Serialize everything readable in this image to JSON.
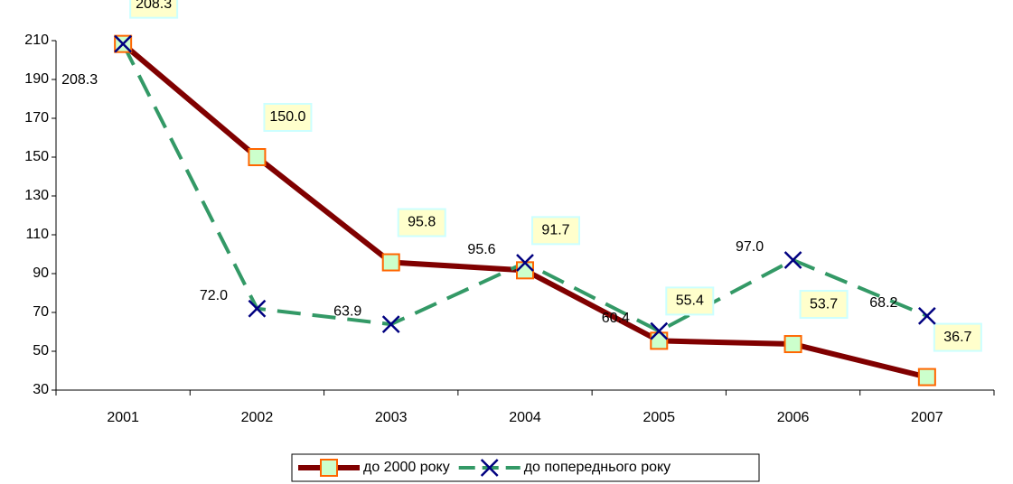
{
  "chart_data": {
    "type": "line",
    "categories": [
      "2001",
      "2002",
      "2003",
      "2004",
      "2005",
      "2006",
      "2007"
    ],
    "series": [
      {
        "name": "до 2000 року",
        "color": "#800000",
        "marker": "square",
        "marker_fill": "#ccffcc",
        "marker_edge": "#ff6600",
        "values": [
          208.3,
          150.0,
          95.8,
          91.7,
          55.4,
          53.7,
          36.7
        ],
        "value_labels": [
          "208.3",
          "150.0",
          "95.8",
          "91.7",
          "55.4",
          "53.7",
          "36.7"
        ]
      },
      {
        "name": "до попереднього року",
        "color": "#339966",
        "marker": "x",
        "marker_edge": "#000080",
        "dashed": true,
        "values": [
          208.3,
          72.0,
          63.9,
          95.6,
          60.4,
          97.0,
          68.2
        ],
        "value_labels": [
          "208.3",
          "72.0",
          "63.9",
          "95.6",
          "60.4",
          "97.0",
          "68.2"
        ]
      }
    ],
    "ylim": [
      30,
      210
    ],
    "yticks": [
      30,
      50,
      70,
      90,
      110,
      130,
      150,
      170,
      190,
      210
    ],
    "grid": false,
    "legend": "bottom"
  }
}
